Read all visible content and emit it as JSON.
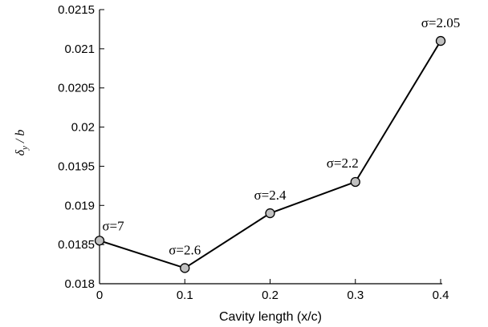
{
  "chart_data": {
    "type": "line",
    "title": "",
    "xlabel": "Cavity length (x/c)",
    "ylabel": "δy / b",
    "ylabel_parts": {
      "main": "δ",
      "sub": "y",
      "rest": " / b"
    },
    "x": [
      0,
      0.1,
      0.2,
      0.3,
      0.4
    ],
    "y": [
      0.01855,
      0.0182,
      0.0189,
      0.0193,
      0.0211
    ],
    "point_labels": [
      "σ=7",
      "σ=2.6",
      "σ=2.4",
      "σ=2.2",
      "σ=2.05"
    ],
    "xlim": [
      0,
      0.4
    ],
    "ylim": [
      0.018,
      0.0215
    ],
    "xticks": [
      0,
      0.1,
      0.2,
      0.3,
      0.4
    ],
    "xtick_labels": [
      "0",
      "0.1",
      "0.2",
      "0.3",
      "0.4"
    ],
    "yticks": [
      0.018,
      0.0185,
      0.019,
      0.0195,
      0.02,
      0.0205,
      0.021,
      0.0215
    ],
    "ytick_labels": [
      "0.018",
      "0.0185",
      "0.019",
      "0.0195",
      "0.02",
      "0.0205",
      "0.021",
      "0.0215"
    ],
    "grid": false,
    "legend": "none",
    "colors": {
      "line": "#000000",
      "marker_fill": "#c0c0c0",
      "marker_stroke": "#000000"
    }
  }
}
